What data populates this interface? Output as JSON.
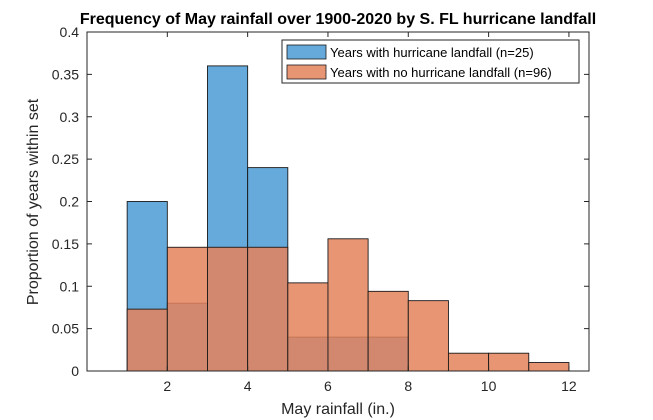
{
  "chart_data": {
    "type": "bar",
    "title": "Frequency of May rainfall over 1900-2020 by S. FL hurricane landfall",
    "xlabel": "May rainfall (in.)",
    "ylabel": "Proportion of years within set",
    "xlim": [
      0,
      12.5
    ],
    "ylim": [
      0,
      0.4
    ],
    "xticks": [
      2,
      4,
      6,
      8,
      10,
      12
    ],
    "xtick_labels": [
      "2",
      "4",
      "6",
      "8",
      "10",
      "12"
    ],
    "yticks": [
      0,
      0.05,
      0.1,
      0.15,
      0.2,
      0.25,
      0.3,
      0.35,
      0.4
    ],
    "ytick_labels": [
      "0",
      "0.05",
      "0.1",
      "0.15",
      "0.2",
      "0.25",
      "0.3",
      "0.35",
      "0.4"
    ],
    "bin_edges": [
      1,
      2,
      3,
      4,
      5,
      6,
      7,
      8,
      9,
      10,
      11,
      12
    ],
    "legend_position": "top-right",
    "series": [
      {
        "name": "Years with hurricane landfall (n=25)",
        "color": "#4b9bd5",
        "values": [
          0.2,
          0.08,
          0.36,
          0.24,
          0.04,
          0.04,
          0.04,
          0,
          0,
          0,
          0
        ]
      },
      {
        "name": "Years with no hurricane landfall (n=96)",
        "color": "#e4825c",
        "values": [
          0.073,
          0.146,
          0.146,
          0.146,
          0.104,
          0.156,
          0.094,
          0.083,
          0.021,
          0.021,
          0.01
        ]
      }
    ]
  }
}
